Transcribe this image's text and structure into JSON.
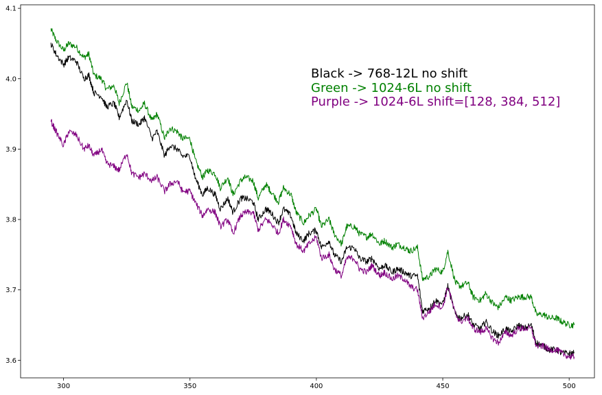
{
  "chart_data": {
    "type": "line",
    "title": "",
    "xlabel": "",
    "ylabel": "",
    "xlim": [
      283,
      510
    ],
    "ylim": [
      3.575,
      4.105
    ],
    "x_ticks": [
      300,
      350,
      400,
      450,
      500
    ],
    "y_ticks": [
      3.6,
      3.7,
      3.8,
      3.9,
      4.0,
      4.1
    ],
    "grid": false,
    "annotations": [
      {
        "text": "Black -> 768-12L no shift",
        "color": "#000000"
      },
      {
        "text": "Green -> 1024-6L no shift",
        "color": "#008000"
      },
      {
        "text": "Purple -> 1024-6L shift=[128, 384, 512]",
        "color": "#800080"
      }
    ],
    "series": [
      {
        "color": "#008000",
        "x": [
          295,
          297,
          300,
          302,
          305,
          308,
          310,
          312,
          315,
          317,
          320,
          322,
          325,
          327,
          330,
          332,
          335,
          337,
          340,
          342,
          345,
          347,
          350,
          352,
          355,
          357,
          360,
          362,
          365,
          367,
          370,
          372,
          375,
          377,
          380,
          382,
          385,
          387,
          390,
          392,
          395,
          397,
          400,
          402,
          405,
          407,
          410,
          412,
          415,
          417,
          420,
          422,
          425,
          427,
          430,
          432,
          435,
          437,
          440,
          442,
          445,
          447,
          450,
          452,
          455,
          457,
          460,
          462,
          465,
          467,
          470,
          472,
          475,
          477,
          480,
          482,
          485,
          487,
          490,
          492,
          495,
          497,
          500,
          502
        ],
        "y": [
          4.07,
          4.055,
          4.04,
          4.05,
          4.045,
          4.03,
          4.035,
          4.005,
          4.0,
          3.985,
          3.99,
          3.965,
          3.995,
          3.96,
          3.955,
          3.965,
          3.94,
          3.95,
          3.915,
          3.93,
          3.925,
          3.915,
          3.915,
          3.885,
          3.86,
          3.87,
          3.865,
          3.845,
          3.86,
          3.835,
          3.855,
          3.86,
          3.855,
          3.83,
          3.85,
          3.84,
          3.825,
          3.845,
          3.835,
          3.81,
          3.795,
          3.805,
          3.815,
          3.79,
          3.8,
          3.78,
          3.765,
          3.79,
          3.79,
          3.78,
          3.775,
          3.78,
          3.765,
          3.77,
          3.76,
          3.765,
          3.76,
          3.755,
          3.76,
          3.715,
          3.72,
          3.73,
          3.725,
          3.755,
          3.71,
          3.705,
          3.71,
          3.69,
          3.685,
          3.695,
          3.68,
          3.675,
          3.69,
          3.685,
          3.69,
          3.69,
          3.69,
          3.665,
          3.665,
          3.66,
          3.66,
          3.655,
          3.65,
          3.65
        ]
      },
      {
        "color": "#000000",
        "x": [
          295,
          297,
          300,
          302,
          305,
          308,
          310,
          312,
          315,
          317,
          320,
          322,
          325,
          327,
          330,
          332,
          335,
          337,
          340,
          342,
          345,
          347,
          350,
          352,
          355,
          357,
          360,
          362,
          365,
          367,
          370,
          372,
          375,
          377,
          380,
          382,
          385,
          387,
          390,
          392,
          395,
          397,
          400,
          402,
          405,
          407,
          410,
          412,
          415,
          417,
          420,
          422,
          425,
          427,
          430,
          432,
          435,
          437,
          440,
          442,
          445,
          447,
          450,
          452,
          455,
          457,
          460,
          462,
          465,
          467,
          470,
          472,
          475,
          477,
          480,
          482,
          485,
          487,
          490,
          492,
          495,
          497,
          500,
          502
        ],
        "y": [
          4.05,
          4.035,
          4.02,
          4.03,
          4.025,
          4.0,
          4.005,
          3.98,
          3.975,
          3.96,
          3.965,
          3.945,
          3.97,
          3.94,
          3.935,
          3.945,
          3.915,
          3.925,
          3.89,
          3.905,
          3.9,
          3.89,
          3.89,
          3.86,
          3.835,
          3.845,
          3.835,
          3.815,
          3.83,
          3.81,
          3.83,
          3.83,
          3.825,
          3.8,
          3.815,
          3.81,
          3.795,
          3.815,
          3.805,
          3.78,
          3.77,
          3.78,
          3.785,
          3.76,
          3.77,
          3.75,
          3.74,
          3.76,
          3.76,
          3.745,
          3.74,
          3.745,
          3.73,
          3.735,
          3.725,
          3.73,
          3.725,
          3.72,
          3.72,
          3.67,
          3.675,
          3.685,
          3.68,
          3.705,
          3.665,
          3.66,
          3.665,
          3.65,
          3.645,
          3.655,
          3.64,
          3.635,
          3.645,
          3.64,
          3.65,
          3.645,
          3.65,
          3.625,
          3.62,
          3.615,
          3.615,
          3.61,
          3.61,
          3.61
        ]
      },
      {
        "color": "#800080",
        "x": [
          295,
          297,
          300,
          302,
          305,
          308,
          310,
          312,
          315,
          317,
          320,
          322,
          325,
          327,
          330,
          332,
          335,
          337,
          340,
          342,
          345,
          347,
          350,
          352,
          355,
          357,
          360,
          362,
          365,
          367,
          370,
          372,
          375,
          377,
          380,
          382,
          385,
          387,
          390,
          392,
          395,
          397,
          400,
          402,
          405,
          407,
          410,
          412,
          415,
          417,
          420,
          422,
          425,
          427,
          430,
          432,
          435,
          437,
          440,
          442,
          445,
          447,
          450,
          452,
          455,
          457,
          460,
          462,
          465,
          467,
          470,
          472,
          475,
          477,
          480,
          482,
          485,
          487,
          490,
          492,
          495,
          497,
          500,
          502
        ],
        "y": [
          3.94,
          3.925,
          3.905,
          3.925,
          3.92,
          3.9,
          3.905,
          3.89,
          3.9,
          3.88,
          3.875,
          3.87,
          3.895,
          3.865,
          3.86,
          3.865,
          3.855,
          3.86,
          3.84,
          3.85,
          3.855,
          3.84,
          3.84,
          3.825,
          3.805,
          3.815,
          3.81,
          3.79,
          3.8,
          3.78,
          3.805,
          3.81,
          3.81,
          3.785,
          3.8,
          3.795,
          3.78,
          3.8,
          3.79,
          3.765,
          3.755,
          3.765,
          3.775,
          3.745,
          3.75,
          3.73,
          3.72,
          3.745,
          3.745,
          3.73,
          3.725,
          3.735,
          3.72,
          3.725,
          3.715,
          3.72,
          3.715,
          3.705,
          3.7,
          3.66,
          3.67,
          3.68,
          3.675,
          3.705,
          3.665,
          3.655,
          3.66,
          3.645,
          3.64,
          3.645,
          3.63,
          3.625,
          3.64,
          3.635,
          3.645,
          3.645,
          3.645,
          3.62,
          3.62,
          3.615,
          3.615,
          3.61,
          3.605,
          3.605
        ]
      }
    ]
  }
}
